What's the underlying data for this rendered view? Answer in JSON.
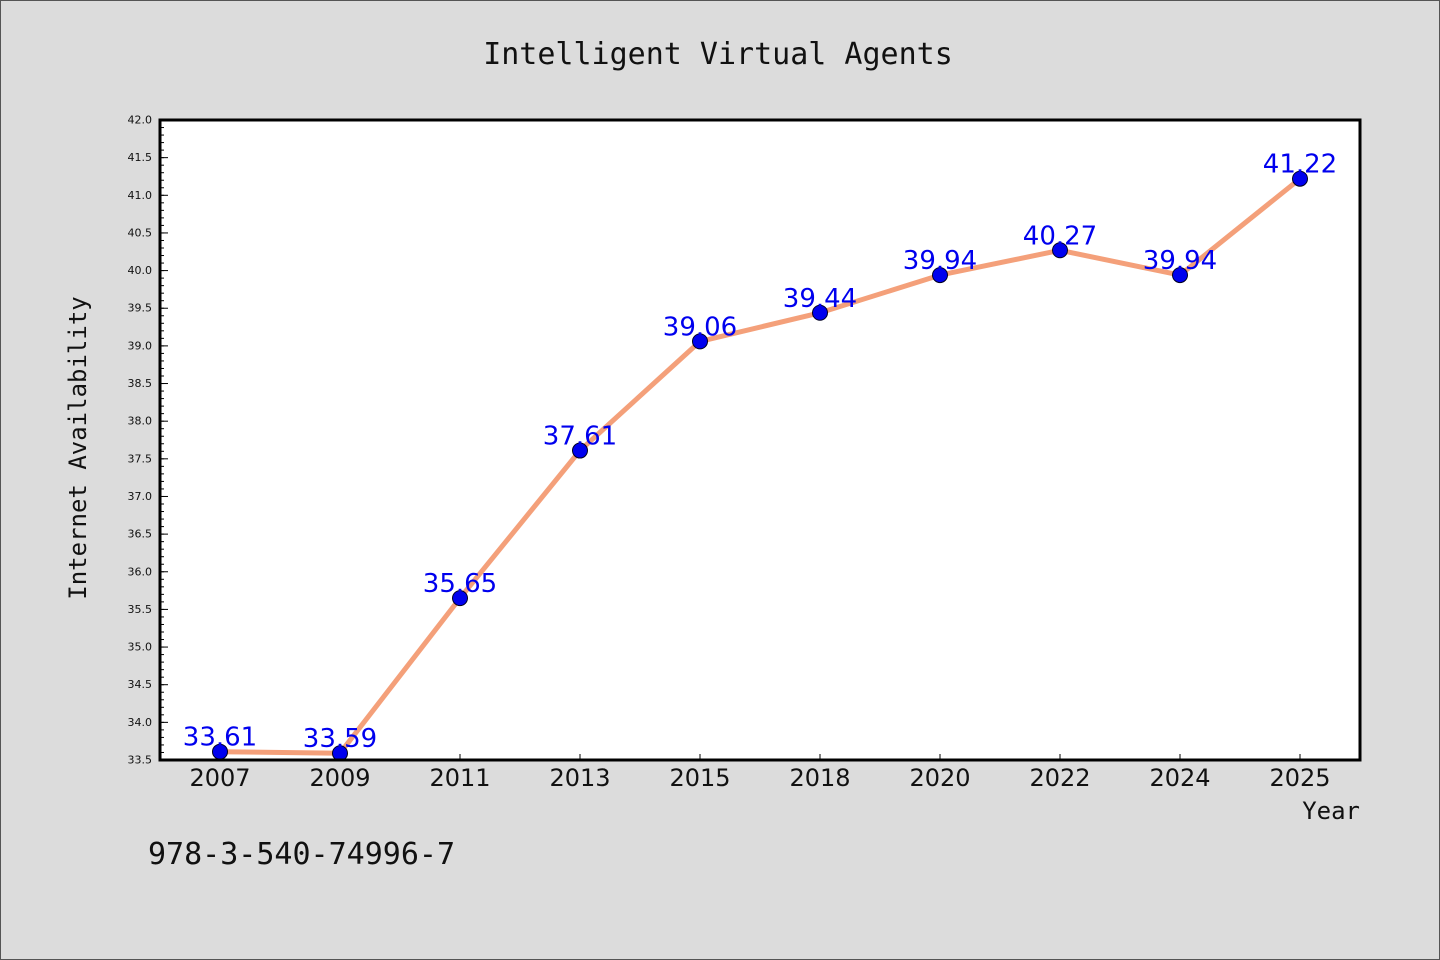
{
  "chart_data": {
    "type": "line",
    "title": "Intelligent Virtual Agents",
    "xlabel": "Year",
    "ylabel": "Internet Availability",
    "categories": [
      "2007",
      "2009",
      "2011",
      "2013",
      "2015",
      "2018",
      "2020",
      "2022",
      "2024",
      "2025"
    ],
    "values": [
      33.61,
      33.59,
      35.65,
      37.61,
      39.06,
      39.44,
      39.94,
      40.27,
      39.94,
      41.22
    ],
    "data_labels": [
      "33.61",
      "33.59",
      "35.65",
      "37.61",
      "39.06",
      "39.44",
      "39.94",
      "40.27",
      "39.94",
      "41.22"
    ],
    "ylim": [
      33.5,
      42.0
    ],
    "yticks": [
      "33.5",
      "34.0",
      "34.5",
      "35.0",
      "35.5",
      "36.0",
      "36.5",
      "37.0",
      "37.5",
      "38.0",
      "38.5",
      "39.0",
      "39.5",
      "40.0",
      "40.5",
      "41.0",
      "41.5",
      "42.0"
    ],
    "grid": false,
    "line_color": "#f4a07a",
    "marker_color": "#0000ee",
    "label_color": "#0000ee"
  },
  "footer_text": "978-3-540-74996-7"
}
